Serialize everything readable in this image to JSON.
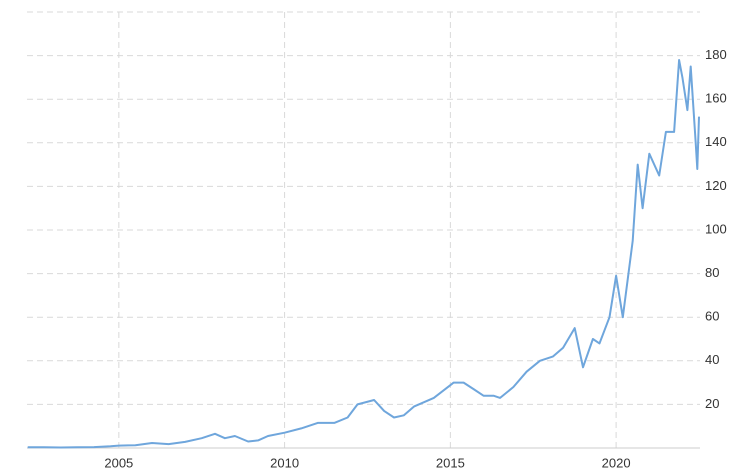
{
  "chart_data": {
    "type": "line",
    "x": [
      2002.25,
      2002.75,
      2003.25,
      2003.75,
      2004.25,
      2004.75,
      2005.0,
      2005.5,
      2006.0,
      2006.5,
      2007.0,
      2007.5,
      2007.9,
      2008.2,
      2008.5,
      2008.9,
      2009.2,
      2009.5,
      2010.0,
      2010.5,
      2011.0,
      2011.5,
      2011.9,
      2012.2,
      2012.7,
      2013.0,
      2013.3,
      2013.6,
      2013.9,
      2014.5,
      2015.1,
      2015.4,
      2015.7,
      2016.0,
      2016.3,
      2016.5,
      2016.9,
      2017.3,
      2017.7,
      2018.1,
      2018.4,
      2018.75,
      2019.0,
      2019.3,
      2019.5,
      2019.8,
      2020.0,
      2020.2,
      2020.5,
      2020.65,
      2020.8,
      2021.0,
      2021.3,
      2021.5,
      2021.75,
      2021.9,
      2022.0,
      2022.15,
      2022.25,
      2022.4,
      2022.45,
      2022.5
    ],
    "values": [
      0.3,
      0.3,
      0.25,
      0.3,
      0.4,
      0.8,
      1.1,
      1.3,
      2.3,
      1.8,
      2.8,
      4.5,
      6.5,
      4.5,
      5.5,
      3,
      3.5,
      5.5,
      7,
      9,
      11.5,
      11.5,
      14,
      20,
      22,
      17,
      14,
      15,
      19,
      23,
      30,
      30,
      27,
      24,
      24,
      23,
      28,
      35,
      40,
      42,
      46,
      55,
      37,
      50,
      48,
      60,
      79,
      60,
      95,
      130,
      110,
      135,
      125,
      145,
      145,
      178,
      170,
      155,
      175,
      140,
      128,
      152
    ],
    "color": "#6fa6dc",
    "xlim": [
      2002.23,
      2022.53
    ],
    "xticks": [
      2005,
      2010,
      2015,
      2020
    ],
    "ylim": [
      0,
      200
    ],
    "yticks": [
      20,
      40,
      60,
      80,
      100,
      120,
      140,
      160,
      180
    ],
    "grid": true
  }
}
